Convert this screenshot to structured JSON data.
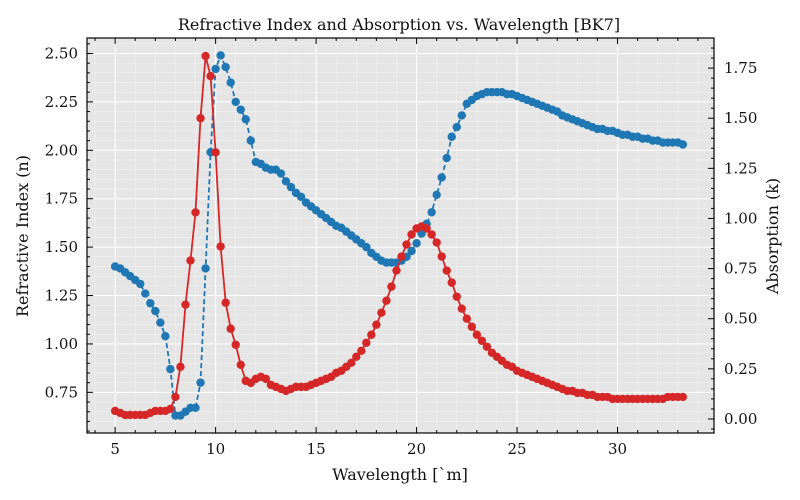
{
  "chart_data": {
    "type": "line",
    "title": "Refractive Index and Absorption vs. Wavelength [BK7]",
    "xlabel": "Wavelength [`m]",
    "ylabel_left": "Refractive Index (n)",
    "ylabel_right": "Absorption (k)",
    "xlim": [
      3.6,
      34.8
    ],
    "ylim_left": [
      0.54,
      2.58
    ],
    "ylim_right": [
      -0.07,
      1.9
    ],
    "x_ticks": [
      5,
      10,
      15,
      20,
      25,
      30
    ],
    "y_left_ticks": [
      "0.75",
      "1.00",
      "1.25",
      "1.50",
      "1.75",
      "2.00",
      "2.25",
      "2.50"
    ],
    "y_right_ticks": [
      "0.00",
      "0.25",
      "0.50",
      "0.75",
      "1.00",
      "1.25",
      "1.50",
      "1.75"
    ],
    "grid": true,
    "legend": "none",
    "background": "#e5e5e5",
    "series": [
      {
        "color": "#1f77b4",
        "axis": "left",
        "style": "dashed-markers",
        "points": [
          [
            5.0,
            1.4
          ],
          [
            5.25,
            1.39
          ],
          [
            5.5,
            1.37
          ],
          [
            5.75,
            1.35
          ],
          [
            6.0,
            1.33
          ],
          [
            6.25,
            1.31
          ],
          [
            6.5,
            1.26
          ],
          [
            6.75,
            1.21
          ],
          [
            7.0,
            1.17
          ],
          [
            7.25,
            1.11
          ],
          [
            7.5,
            1.04
          ],
          [
            7.75,
            0.87
          ],
          [
            8.0,
            0.63
          ],
          [
            8.25,
            0.63
          ],
          [
            8.5,
            0.65
          ],
          [
            8.75,
            0.67
          ],
          [
            9.0,
            0.67
          ],
          [
            9.25,
            0.8
          ],
          [
            9.5,
            1.39
          ],
          [
            9.75,
            1.99
          ],
          [
            10.0,
            2.42
          ],
          [
            10.25,
            2.49
          ],
          [
            10.5,
            2.43
          ],
          [
            10.75,
            2.35
          ],
          [
            11.0,
            2.25
          ],
          [
            11.25,
            2.21
          ],
          [
            11.5,
            2.16
          ],
          [
            11.75,
            2.05
          ],
          [
            12.0,
            1.94
          ],
          [
            12.25,
            1.93
          ],
          [
            12.5,
            1.91
          ],
          [
            12.75,
            1.9
          ],
          [
            13.0,
            1.9
          ],
          [
            13.25,
            1.88
          ],
          [
            13.5,
            1.84
          ],
          [
            13.75,
            1.81
          ],
          [
            14.0,
            1.78
          ],
          [
            14.25,
            1.76
          ],
          [
            14.5,
            1.73
          ],
          [
            14.75,
            1.71
          ],
          [
            15.0,
            1.69
          ],
          [
            15.25,
            1.67
          ],
          [
            15.5,
            1.65
          ],
          [
            15.75,
            1.63
          ],
          [
            16.0,
            1.61
          ],
          [
            16.25,
            1.6
          ],
          [
            16.5,
            1.58
          ],
          [
            16.75,
            1.56
          ],
          [
            17.0,
            1.54
          ],
          [
            17.25,
            1.52
          ],
          [
            17.5,
            1.5
          ],
          [
            17.75,
            1.47
          ],
          [
            18.0,
            1.45
          ],
          [
            18.25,
            1.43
          ],
          [
            18.5,
            1.42
          ],
          [
            18.75,
            1.42
          ],
          [
            19.0,
            1.42
          ],
          [
            19.25,
            1.43
          ],
          [
            19.5,
            1.45
          ],
          [
            19.75,
            1.48
          ],
          [
            20.0,
            1.52
          ],
          [
            20.25,
            1.57
          ],
          [
            20.5,
            1.62
          ],
          [
            20.75,
            1.68
          ],
          [
            21.0,
            1.77
          ],
          [
            21.25,
            1.86
          ],
          [
            21.5,
            1.96
          ],
          [
            21.75,
            2.07
          ],
          [
            22.0,
            2.12
          ],
          [
            22.25,
            2.18
          ],
          [
            22.5,
            2.24
          ],
          [
            22.75,
            2.26
          ],
          [
            23.0,
            2.28
          ],
          [
            23.25,
            2.29
          ],
          [
            23.5,
            2.3
          ],
          [
            23.75,
            2.3
          ],
          [
            24.0,
            2.3
          ],
          [
            24.25,
            2.3
          ],
          [
            24.5,
            2.29
          ],
          [
            24.75,
            2.29
          ],
          [
            25.0,
            2.28
          ],
          [
            25.25,
            2.27
          ],
          [
            25.5,
            2.26
          ],
          [
            25.75,
            2.25
          ],
          [
            26.0,
            2.24
          ],
          [
            26.25,
            2.23
          ],
          [
            26.5,
            2.22
          ],
          [
            26.75,
            2.21
          ],
          [
            27.0,
            2.2
          ],
          [
            27.25,
            2.18
          ],
          [
            27.5,
            2.17
          ],
          [
            27.75,
            2.16
          ],
          [
            28.0,
            2.15
          ],
          [
            28.25,
            2.14
          ],
          [
            28.5,
            2.13
          ],
          [
            28.75,
            2.12
          ],
          [
            29.0,
            2.11
          ],
          [
            29.25,
            2.11
          ],
          [
            29.5,
            2.1
          ],
          [
            29.75,
            2.1
          ],
          [
            30.0,
            2.09
          ],
          [
            30.25,
            2.08
          ],
          [
            30.5,
            2.08
          ],
          [
            30.75,
            2.07
          ],
          [
            31.0,
            2.07
          ],
          [
            31.25,
            2.06
          ],
          [
            31.5,
            2.06
          ],
          [
            31.75,
            2.05
          ],
          [
            32.0,
            2.05
          ],
          [
            32.25,
            2.04
          ],
          [
            32.5,
            2.04
          ],
          [
            32.75,
            2.04
          ],
          [
            33.0,
            2.04
          ],
          [
            33.25,
            2.03
          ]
        ]
      },
      {
        "color": "#d62728",
        "axis": "right",
        "style": "solid-markers",
        "points": [
          [
            5.0,
            0.04
          ],
          [
            5.25,
            0.03
          ],
          [
            5.5,
            0.02
          ],
          [
            5.75,
            0.02
          ],
          [
            6.0,
            0.02
          ],
          [
            6.25,
            0.02
          ],
          [
            6.5,
            0.02
          ],
          [
            6.75,
            0.03
          ],
          [
            7.0,
            0.04
          ],
          [
            7.25,
            0.04
          ],
          [
            7.5,
            0.04
          ],
          [
            7.75,
            0.05
          ],
          [
            8.0,
            0.11
          ],
          [
            8.25,
            0.26
          ],
          [
            8.5,
            0.57
          ],
          [
            8.75,
            0.79
          ],
          [
            9.0,
            1.03
          ],
          [
            9.25,
            1.5
          ],
          [
            9.5,
            1.81
          ],
          [
            9.75,
            1.71
          ],
          [
            10.0,
            1.33
          ],
          [
            10.25,
            0.86
          ],
          [
            10.5,
            0.58
          ],
          [
            10.75,
            0.45
          ],
          [
            11.0,
            0.37
          ],
          [
            11.25,
            0.27
          ],
          [
            11.5,
            0.19
          ],
          [
            11.75,
            0.18
          ],
          [
            12.0,
            0.2
          ],
          [
            12.25,
            0.21
          ],
          [
            12.5,
            0.2
          ],
          [
            12.75,
            0.17
          ],
          [
            13.0,
            0.16
          ],
          [
            13.25,
            0.15
          ],
          [
            13.5,
            0.14
          ],
          [
            13.75,
            0.15
          ],
          [
            14.0,
            0.16
          ],
          [
            14.25,
            0.16
          ],
          [
            14.5,
            0.16
          ],
          [
            14.75,
            0.17
          ],
          [
            15.0,
            0.18
          ],
          [
            15.25,
            0.19
          ],
          [
            15.5,
            0.2
          ],
          [
            15.75,
            0.21
          ],
          [
            16.0,
            0.23
          ],
          [
            16.25,
            0.24
          ],
          [
            16.5,
            0.26
          ],
          [
            16.75,
            0.28
          ],
          [
            17.0,
            0.31
          ],
          [
            17.25,
            0.34
          ],
          [
            17.5,
            0.38
          ],
          [
            17.75,
            0.42
          ],
          [
            18.0,
            0.47
          ],
          [
            18.25,
            0.53
          ],
          [
            18.5,
            0.59
          ],
          [
            18.75,
            0.66
          ],
          [
            19.0,
            0.74
          ],
          [
            19.25,
            0.81
          ],
          [
            19.5,
            0.87
          ],
          [
            19.75,
            0.92
          ],
          [
            20.0,
            0.95
          ],
          [
            20.25,
            0.96
          ],
          [
            20.5,
            0.95
          ],
          [
            20.75,
            0.92
          ],
          [
            21.0,
            0.88
          ],
          [
            21.25,
            0.81
          ],
          [
            21.5,
            0.74
          ],
          [
            21.75,
            0.68
          ],
          [
            22.0,
            0.61
          ],
          [
            22.25,
            0.55
          ],
          [
            22.5,
            0.5
          ],
          [
            22.75,
            0.46
          ],
          [
            23.0,
            0.42
          ],
          [
            23.25,
            0.39
          ],
          [
            23.5,
            0.36
          ],
          [
            23.75,
            0.33
          ],
          [
            24.0,
            0.31
          ],
          [
            24.25,
            0.29
          ],
          [
            24.5,
            0.27
          ],
          [
            24.75,
            0.26
          ],
          [
            25.0,
            0.24
          ],
          [
            25.25,
            0.23
          ],
          [
            25.5,
            0.22
          ],
          [
            25.75,
            0.21
          ],
          [
            26.0,
            0.2
          ],
          [
            26.25,
            0.19
          ],
          [
            26.5,
            0.18
          ],
          [
            26.75,
            0.17
          ],
          [
            27.0,
            0.16
          ],
          [
            27.25,
            0.15
          ],
          [
            27.5,
            0.14
          ],
          [
            27.75,
            0.14
          ],
          [
            28.0,
            0.13
          ],
          [
            28.25,
            0.13
          ],
          [
            28.5,
            0.12
          ],
          [
            28.75,
            0.12
          ],
          [
            29.0,
            0.11
          ],
          [
            29.25,
            0.11
          ],
          [
            29.5,
            0.11
          ],
          [
            29.75,
            0.1
          ],
          [
            30.0,
            0.1
          ],
          [
            30.25,
            0.1
          ],
          [
            30.5,
            0.1
          ],
          [
            30.75,
            0.1
          ],
          [
            31.0,
            0.1
          ],
          [
            31.25,
            0.1
          ],
          [
            31.5,
            0.1
          ],
          [
            31.75,
            0.1
          ],
          [
            32.0,
            0.1
          ],
          [
            32.25,
            0.1
          ],
          [
            32.5,
            0.11
          ],
          [
            32.75,
            0.11
          ],
          [
            33.0,
            0.11
          ],
          [
            33.25,
            0.11
          ]
        ]
      }
    ]
  }
}
